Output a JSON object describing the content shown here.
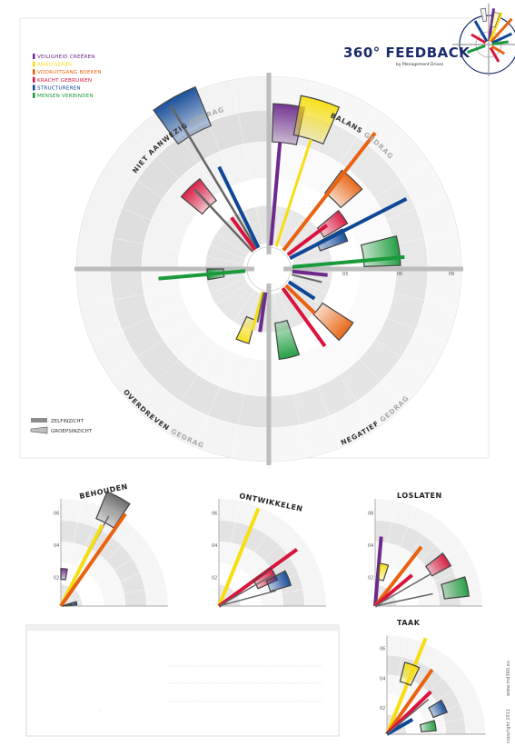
{
  "brand": {
    "title": "360° FEEDBACK",
    "subtitle": "by Management Drives"
  },
  "colors": {
    "purple": "#6d2a8c",
    "yellow": "#f7de10",
    "orange": "#e8620f",
    "red": "#d9143c",
    "blue": "#0f4797",
    "green": "#1a9a3a",
    "ring_dark": "#d9d9d9",
    "ring_light": "#eeeeee",
    "frame": "#999999"
  },
  "legend": [
    {
      "label": "VEILIGHEID CREËREN",
      "color": "#6d2a8c"
    },
    {
      "label": "ANALYSEREN",
      "color": "#f7de10"
    },
    {
      "label": "VOORUITGANG BOEKEN",
      "color": "#e8620f"
    },
    {
      "label": "KRACHT GEBRUIKEN",
      "color": "#d9143c"
    },
    {
      "label": "STRUCTUREREN",
      "color": "#0f4797"
    },
    {
      "label": "MENSEN VERBINDEN",
      "color": "#1a9a3a"
    }
  ],
  "quadrants": {
    "top_left": {
      "bold": "NIET AANWEZIG",
      "light": "GEDRAG"
    },
    "top_right": {
      "bold": "BALANS",
      "light": "GEDRAG"
    },
    "bottom_left": {
      "bold": "OVERDREVEN",
      "light": "GEDRAG"
    },
    "bottom_right": {
      "bold": "NEGATIEF",
      "light": "GEDRAG"
    }
  },
  "axis_ticks": [
    "03",
    "06",
    "09"
  ],
  "key": {
    "self": "ZELFINZICHT",
    "group": "GROEPSINZICHT"
  },
  "small_charts": [
    {
      "title": "BEHOUDEN",
      "ticks": [
        "06",
        "04",
        "02"
      ]
    },
    {
      "title": "ONTWIKKELEN",
      "ticks": [
        "06",
        "04",
        "02"
      ]
    },
    {
      "title": "LOSLATEN",
      "ticks": [
        "06",
        "04",
        "02"
      ]
    },
    {
      "title": "TAAK",
      "ticks": [
        "06",
        "04",
        "02"
      ]
    }
  ],
  "side_text": {
    "copyright": "copyright 2011",
    "site": "www.md360.eu"
  },
  "note_text": "."
}
